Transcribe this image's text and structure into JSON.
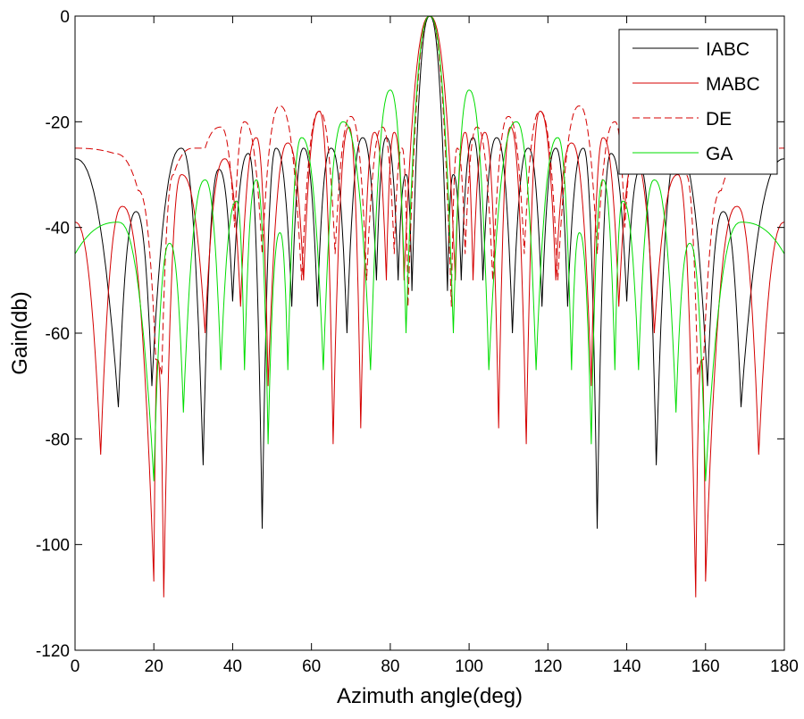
{
  "chart_data": {
    "type": "line",
    "title": "",
    "xlabel": "Azimuth angle(deg)",
    "ylabel": "Gain(db)",
    "xlim": [
      0,
      180
    ],
    "ylim": [
      -120,
      0
    ],
    "xticks": [
      0,
      20,
      40,
      60,
      80,
      100,
      120,
      140,
      160,
      180
    ],
    "yticks": [
      0,
      -20,
      -40,
      -60,
      -80,
      -100,
      -120
    ],
    "grid": false,
    "legend_position": "top-right",
    "symmetric_about_deg": 90,
    "series": [
      {
        "name": "IABC",
        "color": "#000000",
        "dash": "solid",
        "points": [
          [
            0,
            -27
          ],
          [
            11,
            -74
          ],
          [
            15.5,
            -37
          ],
          [
            19.5,
            -70
          ],
          [
            27,
            -25
          ],
          [
            32.5,
            -85
          ],
          [
            36.5,
            -29
          ],
          [
            40,
            -54
          ],
          [
            44,
            -26
          ],
          [
            47.5,
            -97
          ],
          [
            51,
            -25
          ],
          [
            55,
            -55
          ],
          [
            58,
            -25
          ],
          [
            61.5,
            -55
          ],
          [
            65,
            -25
          ],
          [
            69,
            -60
          ],
          [
            73,
            -23
          ],
          [
            76.5,
            -50
          ],
          [
            79,
            -23
          ],
          [
            82,
            -50
          ],
          [
            84,
            -30
          ],
          [
            85.5,
            -52
          ],
          [
            90,
            0
          ]
        ]
      },
      {
        "name": "MABC",
        "color": "#d40000",
        "dash": "solid",
        "points": [
          [
            0,
            -39
          ],
          [
            6.5,
            -83
          ],
          [
            12,
            -36
          ],
          [
            20,
            -107
          ],
          [
            21,
            -65
          ],
          [
            22.5,
            -110
          ],
          [
            27,
            -30
          ],
          [
            33,
            -60
          ],
          [
            38,
            -27
          ],
          [
            42,
            -55
          ],
          [
            46,
            -23
          ],
          [
            49,
            -70
          ],
          [
            54,
            -24
          ],
          [
            58,
            -50
          ],
          [
            62,
            -18
          ],
          [
            65.5,
            -81
          ],
          [
            69.5,
            -21
          ],
          [
            72.5,
            -78
          ],
          [
            76,
            -22
          ],
          [
            79,
            -50
          ],
          [
            81,
            -22
          ],
          [
            83.5,
            -50
          ],
          [
            90,
            0
          ]
        ]
      },
      {
        "name": "DE",
        "color": "#d40000",
        "dash": "dashed",
        "points": [
          [
            0,
            -25
          ],
          [
            10,
            -26
          ],
          [
            16,
            -33
          ],
          [
            20.5,
            -65
          ],
          [
            22,
            -68
          ],
          [
            25,
            -30
          ],
          [
            30,
            -25
          ],
          [
            33,
            -25
          ],
          [
            37,
            -21
          ],
          [
            40.5,
            -40
          ],
          [
            43,
            -20
          ],
          [
            47.5,
            -45
          ],
          [
            52,
            -17
          ],
          [
            57.5,
            -50
          ],
          [
            62,
            -18
          ],
          [
            66,
            -45
          ],
          [
            70,
            -19
          ],
          [
            74,
            -50
          ],
          [
            78,
            -21
          ],
          [
            81,
            -45
          ],
          [
            83,
            -25
          ],
          [
            84.5,
            -55
          ],
          [
            90,
            0
          ]
        ]
      },
      {
        "name": "GA",
        "color": "#00dd00",
        "dash": "solid",
        "points": [
          [
            0,
            -45
          ],
          [
            11,
            -39
          ],
          [
            20,
            -88
          ],
          [
            24,
            -43
          ],
          [
            27.5,
            -75
          ],
          [
            33,
            -31
          ],
          [
            37,
            -67
          ],
          [
            41,
            -35
          ],
          [
            43,
            -67
          ],
          [
            46,
            -31
          ],
          [
            49,
            -81
          ],
          [
            52,
            -41
          ],
          [
            54,
            -67
          ],
          [
            57.5,
            -23
          ],
          [
            63,
            -67
          ],
          [
            68,
            -20
          ],
          [
            75,
            -67
          ],
          [
            80,
            -14
          ],
          [
            84,
            -60
          ],
          [
            90,
            0
          ]
        ]
      }
    ]
  }
}
